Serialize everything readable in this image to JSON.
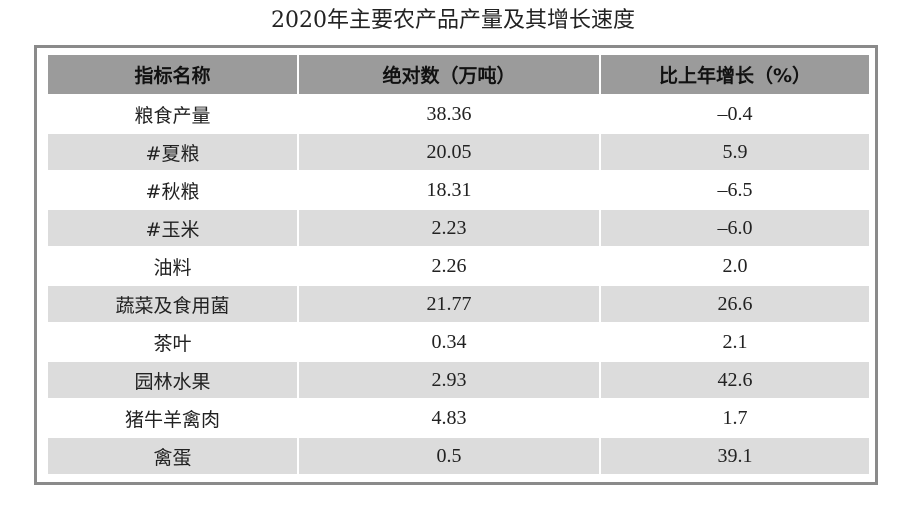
{
  "title": "2020年主要农产品产量及其增长速度",
  "headers": [
    "指标名称",
    "绝对数（万吨）",
    "比上年增长（%）"
  ],
  "rows": [
    {
      "name": "粮食产量",
      "value": "38.36",
      "growth": "–0.4"
    },
    {
      "name": "#夏粮",
      "value": "20.05",
      "growth": "5.9"
    },
    {
      "name": "#秋粮",
      "value": "18.31",
      "growth": "–6.5"
    },
    {
      "name": "#玉米",
      "value": "2.23",
      "growth": "–6.0"
    },
    {
      "name": "油料",
      "value": "2.26",
      "growth": "2.0"
    },
    {
      "name": "蔬菜及食用菌",
      "value": "21.77",
      "growth": "26.6"
    },
    {
      "name": "茶叶",
      "value": "0.34",
      "growth": "2.1"
    },
    {
      "name": "园林水果",
      "value": "2.93",
      "growth": "42.6"
    },
    {
      "name": "猪牛羊禽肉",
      "value": "4.83",
      "growth": "1.7"
    },
    {
      "name": "禽蛋",
      "value": "0.5",
      "growth": "39.1"
    }
  ]
}
